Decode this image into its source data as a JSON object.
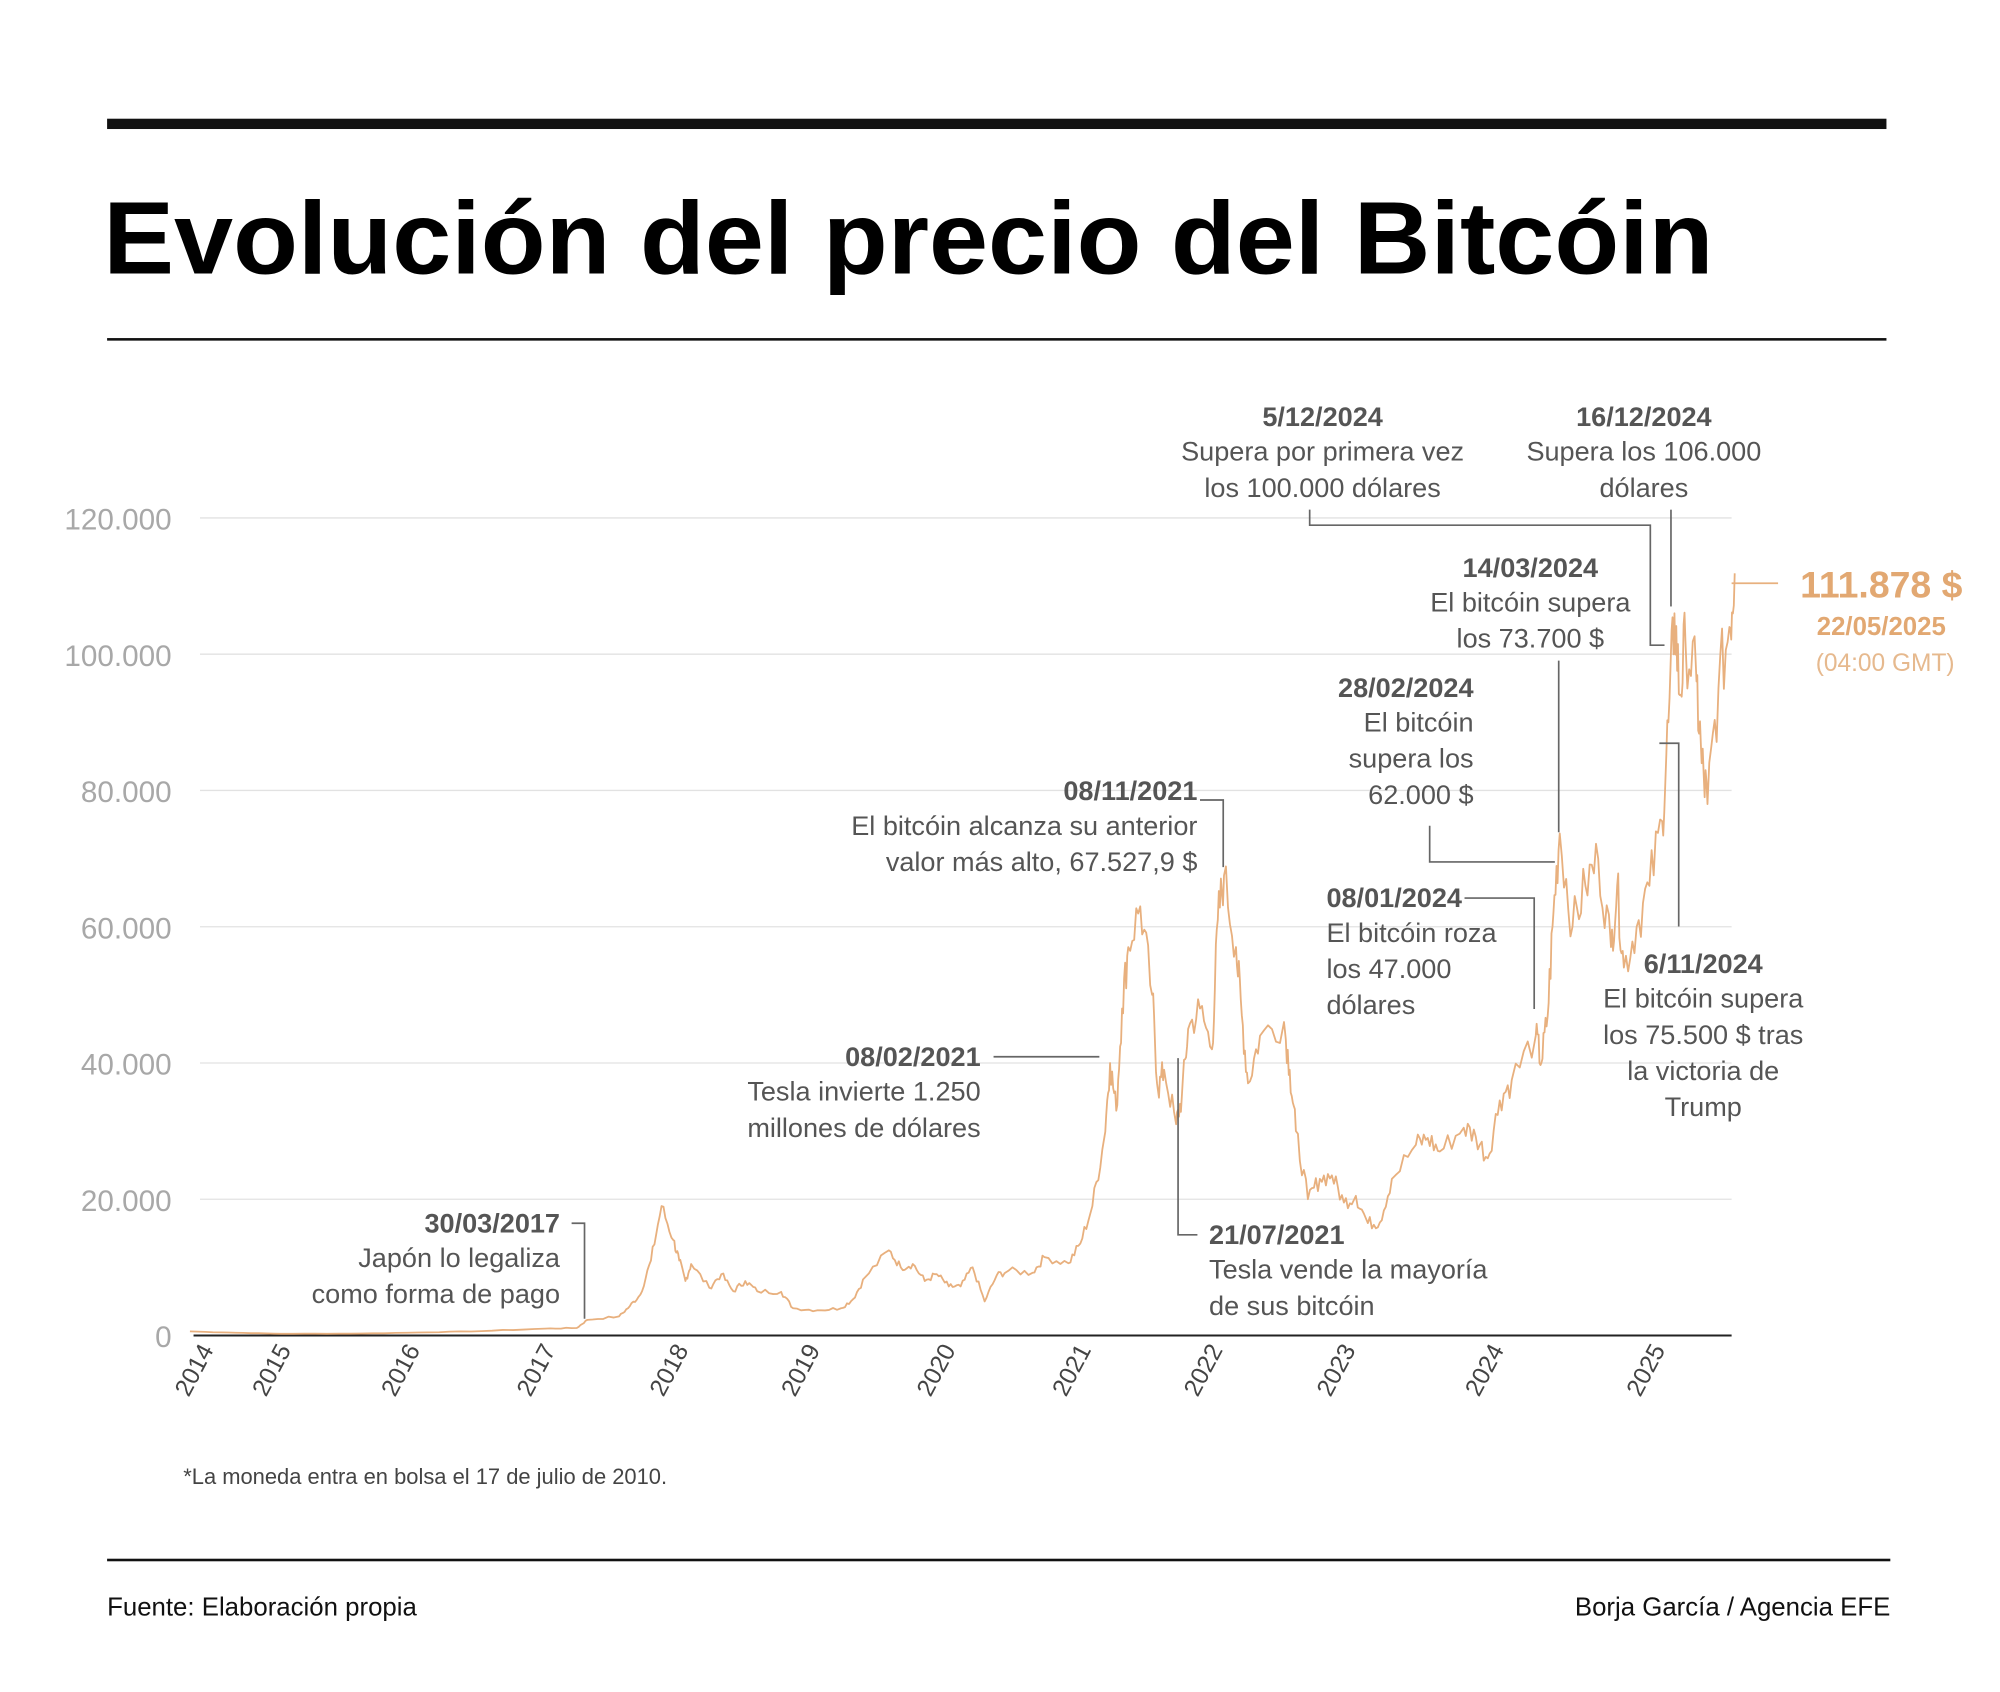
{
  "title": "Evolución del precio del Bitcóin",
  "footnote": "*La moneda entra en bolsa el 17 de julio de 2010.",
  "source": "Fuente: Elaboración propia",
  "credit": "Borja García / Agencia EFE",
  "colors": {
    "series": "#e8b07e",
    "highlight": "#e2a872",
    "text": "#555555",
    "axis": "#a8a8a8"
  },
  "chart_data": {
    "type": "line",
    "title": "Evolución del precio del Bitcóin",
    "xlabel": "",
    "ylabel": "",
    "ylim": [
      0,
      120000
    ],
    "yticks": [
      "0",
      "20.000",
      "40.000",
      "60.000",
      "80.000",
      "100.000",
      "120.000"
    ],
    "ytick_values": [
      0,
      20000,
      40000,
      60000,
      80000,
      100000,
      120000
    ],
    "xticks": [
      "2014",
      "2015",
      "2016",
      "2017",
      "2018",
      "2019",
      "2020",
      "2021",
      "2022",
      "2023",
      "2024",
      "2025"
    ],
    "grid": "horizontal",
    "series": [
      {
        "color": "#e8b07e",
        "points": [
          [
            "2014-05",
            600
          ],
          [
            "2014-09",
            400
          ],
          [
            "2015-01",
            250
          ],
          [
            "2015-07",
            260
          ],
          [
            "2016-01",
            430
          ],
          [
            "2016-07",
            650
          ],
          [
            "2017-01",
            1000
          ],
          [
            "2017-04",
            1100
          ],
          [
            "2017-05",
            2300
          ],
          [
            "2017-08",
            2800
          ],
          [
            "2017-09",
            4300
          ],
          [
            "2017-10",
            6000
          ],
          [
            "2017-11",
            11000
          ],
          [
            "2017-12",
            19000
          ],
          [
            "2018-01",
            14000
          ],
          [
            "2018-01",
            11000
          ],
          [
            "2018-02",
            8000
          ],
          [
            "2018-02",
            10500
          ],
          [
            "2018-04",
            7000
          ],
          [
            "2018-05",
            9000
          ],
          [
            "2018-06",
            6500
          ],
          [
            "2018-07",
            8000
          ],
          [
            "2018-08",
            6500
          ],
          [
            "2018-10",
            6400
          ],
          [
            "2018-11",
            4000
          ],
          [
            "2019-01",
            3700
          ],
          [
            "2019-03",
            4000
          ],
          [
            "2019-04",
            5300
          ],
          [
            "2019-05",
            8500
          ],
          [
            "2019-07",
            12500
          ],
          [
            "2019-08",
            10000
          ],
          [
            "2019-09",
            10500
          ],
          [
            "2019-10",
            8000
          ],
          [
            "2019-11",
            9000
          ],
          [
            "2019-12",
            7200
          ],
          [
            "2020-01",
            7200
          ],
          [
            "2020-02",
            10000
          ],
          [
            "2020-03",
            5000
          ],
          [
            "2020-04",
            8800
          ],
          [
            "2020-05",
            9500
          ],
          [
            "2020-07",
            9200
          ],
          [
            "2020-08",
            11500
          ],
          [
            "2020-10",
            10600
          ],
          [
            "2020-11",
            13500
          ],
          [
            "2020-12",
            19000
          ],
          [
            "2021-01",
            29000
          ],
          [
            "2021-01",
            40000
          ],
          [
            "2021-02",
            33000
          ],
          [
            "2021-02",
            48000
          ],
          [
            "2021-03",
            57000
          ],
          [
            "2021-04",
            63000
          ],
          [
            "2021-05",
            50000
          ],
          [
            "2021-05",
            36000
          ],
          [
            "2021-06",
            39000
          ],
          [
            "2021-07",
            31000
          ],
          [
            "2021-07",
            35000
          ],
          [
            "2021-08",
            45000
          ],
          [
            "2021-09",
            48000
          ],
          [
            "2021-10",
            42000
          ],
          [
            "2021-10",
            61000
          ],
          [
            "2021-11",
            67528
          ],
          [
            "2021-12",
            57000
          ],
          [
            "2021-12",
            47000
          ],
          [
            "2022-01",
            37000
          ],
          [
            "2022-02",
            44000
          ],
          [
            "2022-04",
            46000
          ],
          [
            "2022-04",
            39000
          ],
          [
            "2022-05",
            30000
          ],
          [
            "2022-06",
            20000
          ],
          [
            "2022-07",
            23000
          ],
          [
            "2022-08",
            23500
          ],
          [
            "2022-09",
            19500
          ],
          [
            "2022-10",
            20500
          ],
          [
            "2022-11",
            16500
          ],
          [
            "2022-12",
            16600
          ],
          [
            "2023-01",
            23000
          ],
          [
            "2023-03",
            28000
          ],
          [
            "2023-04",
            29000
          ],
          [
            "2023-05",
            27000
          ],
          [
            "2023-07",
            30500
          ],
          [
            "2023-08",
            29200
          ],
          [
            "2023-09",
            26000
          ],
          [
            "2023-10",
            34500
          ],
          [
            "2023-11",
            37500
          ],
          [
            "2024-01",
            44000
          ],
          [
            "2024-01",
            40000
          ],
          [
            "2024-02",
            47000
          ],
          [
            "2024-02",
            62000
          ],
          [
            "2024-03",
            73700
          ],
          [
            "2024-04",
            60000
          ],
          [
            "2024-05",
            66000
          ],
          [
            "2024-06",
            70000
          ],
          [
            "2024-07",
            57000
          ],
          [
            "2024-07",
            66000
          ],
          [
            "2024-08",
            54000
          ],
          [
            "2024-09",
            60000
          ],
          [
            "2024-10",
            66000
          ],
          [
            "2024-11",
            75500
          ],
          [
            "2024-11",
            90000
          ],
          [
            "2024-12",
            106000
          ],
          [
            "2024-12",
            94000
          ],
          [
            "2025-01",
            102000
          ],
          [
            "2025-02",
            96000
          ],
          [
            "2025-02",
            84000
          ],
          [
            "2025-03",
            78000
          ],
          [
            "2025-04",
            95000
          ],
          [
            "2025-05",
            104000
          ],
          [
            "2025-05",
            111878
          ]
        ]
      }
    ],
    "annotations": [
      {
        "date": "30/03/2017",
        "lines": [
          "Japón lo legaliza",
          "como forma de pago"
        ]
      },
      {
        "date": "08/02/2021",
        "lines": [
          "Tesla invierte 1.250",
          "millones de dólares"
        ]
      },
      {
        "date": "08/11/2021",
        "lines": [
          "El bitcóin alcanza su anterior",
          "valor más alto, 67.527,9 $"
        ]
      },
      {
        "date": "21/07/2021",
        "lines": [
          "Tesla vende la mayoría",
          "de sus bitcóin"
        ]
      },
      {
        "date": "5/12/2024",
        "lines": [
          "Supera por primera vez",
          "los 100.000 dólares"
        ]
      },
      {
        "date": "16/12/2024",
        "lines": [
          "Supera los 106.000",
          "dólares"
        ]
      },
      {
        "date": "14/03/2024",
        "lines": [
          "El bitcóin supera",
          "los 73.700 $"
        ]
      },
      {
        "date": "28/02/2024",
        "lines": [
          "El bitcóin",
          "supera los",
          "62.000 $"
        ]
      },
      {
        "date": "08/01/2024",
        "lines": [
          "El bitcóin roza",
          "los 47.000",
          "dólares"
        ]
      },
      {
        "date": "6/11/2024",
        "lines": [
          "El bitcóin supera",
          "los 75.500 $ tras",
          "la victoria de",
          "Trump"
        ]
      }
    ],
    "latest": {
      "value": "111.878 $",
      "date": "22/05/2025",
      "time": "(04:00 GMT)"
    }
  }
}
